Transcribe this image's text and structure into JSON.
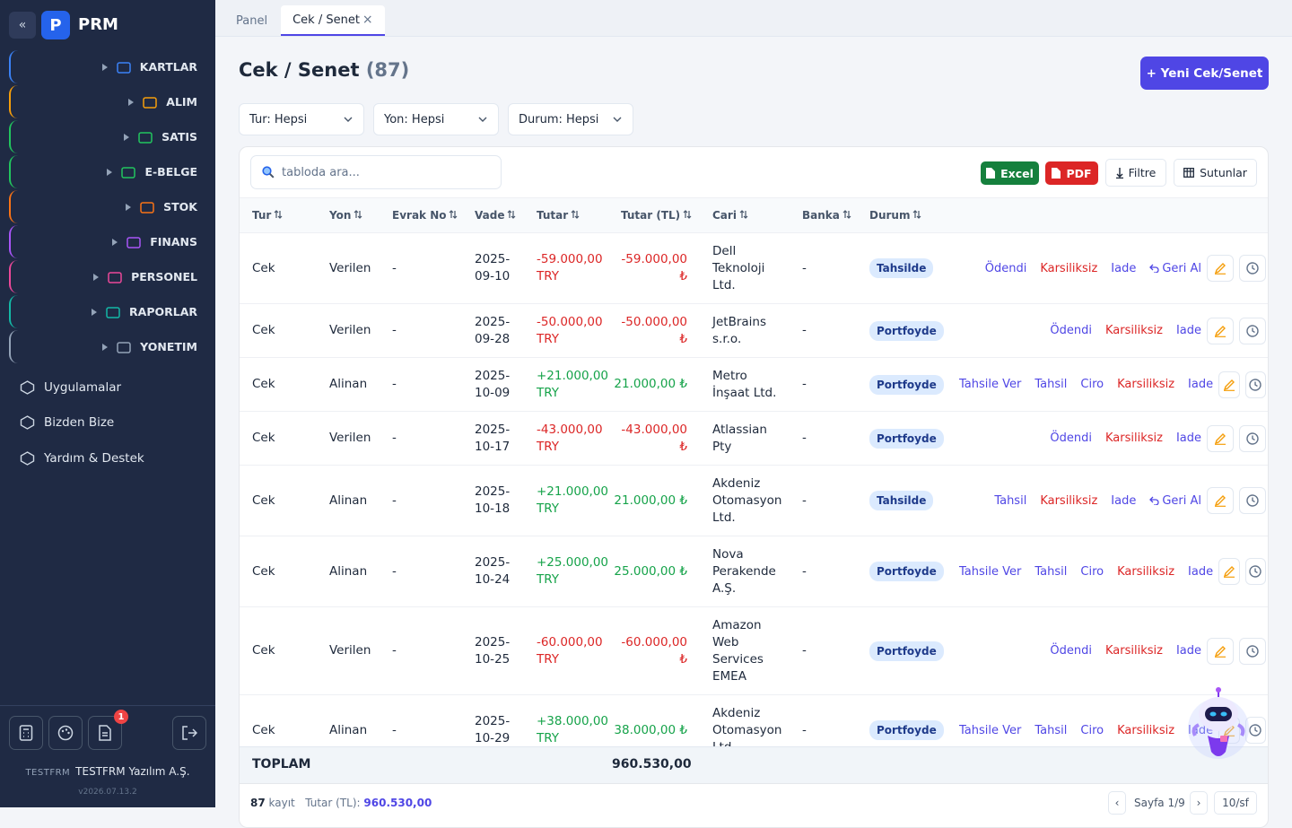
{
  "sidebar": {
    "collapse": "«",
    "logo": "P",
    "brand": "PRM",
    "menu": [
      {
        "label": "KARTLAR",
        "color": "#3b82f6"
      },
      {
        "label": "ALIM",
        "color": "#f59e0b"
      },
      {
        "label": "SATIS",
        "color": "#22c55e"
      },
      {
        "label": "E-BELGE",
        "color": "#22c55e"
      },
      {
        "label": "STOK",
        "color": "#f97316"
      },
      {
        "label": "FINANS",
        "color": "#a855f7"
      },
      {
        "label": "PERSONEL",
        "color": "#ec4899"
      },
      {
        "label": "RAPORLAR",
        "color": "#14b8a6"
      },
      {
        "label": "YONETIM",
        "color": "#94a3b8"
      }
    ],
    "links": [
      "Uygulamalar",
      "Bizden Bize",
      "Yardım & Destek"
    ],
    "badge": "1",
    "company_code": "TESTFRM",
    "company": "TESTFRM Yazılım A.Ş.",
    "version": "v2026.07.13.2"
  },
  "tabs": [
    {
      "label": "Panel",
      "active": false
    },
    {
      "label": "Cek / Senet",
      "active": true,
      "close": "×"
    }
  ],
  "header": {
    "title": "Cek / Senet",
    "count": "(87)",
    "new_button": "+ Yeni Cek/Senet"
  },
  "filters": [
    "Tur: Hepsi",
    "Yon: Hepsi",
    "Durum: Hepsi"
  ],
  "toolbar": {
    "search_placeholder": "tabloda ara...",
    "excel": "Excel",
    "pdf": "PDF",
    "filter": "Filtre",
    "columns": "Sutunlar"
  },
  "table": {
    "columns": [
      "Tur",
      "Yon",
      "Evrak No",
      "Vade",
      "Tutar",
      "Tutar (TL)",
      "Cari",
      "Banka",
      "Durum"
    ],
    "rows": [
      {
        "tur": "Cek",
        "yon": "Verilen",
        "evrak": "-",
        "vade": "2025-09-10",
        "tutar": "-59.000,00 TRY",
        "tutar_tl": "-59.000,00 ₺",
        "cari": "Dell Teknoloji Ltd.",
        "banka": "-",
        "durum": "Tahsilde",
        "actions": [
          {
            "label": "Ödendi",
            "tone": "primary"
          },
          {
            "label": "Karsiliksiz",
            "tone": "danger"
          },
          {
            "label": "Iade",
            "tone": "primary"
          },
          {
            "label": "Geri Al",
            "tone": "primary",
            "icon": "undo"
          }
        ]
      },
      {
        "tur": "Cek",
        "yon": "Verilen",
        "evrak": "-",
        "vade": "2025-09-28",
        "tutar": "-50.000,00 TRY",
        "tutar_tl": "-50.000,00 ₺",
        "cari": "JetBrains s.r.o.",
        "banka": "-",
        "durum": "Portfoyde",
        "actions": [
          {
            "label": "Ödendi",
            "tone": "primary"
          },
          {
            "label": "Karsiliksiz",
            "tone": "danger"
          },
          {
            "label": "Iade",
            "tone": "primary"
          }
        ]
      },
      {
        "tur": "Cek",
        "yon": "Alinan",
        "evrak": "-",
        "vade": "2025-10-09",
        "tutar": "+21.000,00 TRY",
        "tutar_tl": "21.000,00 ₺",
        "cari": "Metro İnşaat Ltd.",
        "banka": "-",
        "durum": "Portfoyde",
        "actions": [
          {
            "label": "Tahsile Ver",
            "tone": "primary"
          },
          {
            "label": "Tahsil",
            "tone": "primary"
          },
          {
            "label": "Ciro",
            "tone": "primary"
          },
          {
            "label": "Karsiliksiz",
            "tone": "danger"
          },
          {
            "label": "Iade",
            "tone": "primary"
          }
        ]
      },
      {
        "tur": "Cek",
        "yon": "Verilen",
        "evrak": "-",
        "vade": "2025-10-17",
        "tutar": "-43.000,00 TRY",
        "tutar_tl": "-43.000,00 ₺",
        "cari": "Atlassian Pty",
        "banka": "-",
        "durum": "Portfoyde",
        "actions": [
          {
            "label": "Ödendi",
            "tone": "primary"
          },
          {
            "label": "Karsiliksiz",
            "tone": "danger"
          },
          {
            "label": "Iade",
            "tone": "primary"
          }
        ]
      },
      {
        "tur": "Cek",
        "yon": "Alinan",
        "evrak": "-",
        "vade": "2025-10-18",
        "tutar": "+21.000,00 TRY",
        "tutar_tl": "21.000,00 ₺",
        "cari": "Akdeniz Otomasyon Ltd.",
        "banka": "-",
        "durum": "Tahsilde",
        "actions": [
          {
            "label": "Tahsil",
            "tone": "primary"
          },
          {
            "label": "Karsiliksiz",
            "tone": "danger"
          },
          {
            "label": "Iade",
            "tone": "primary"
          },
          {
            "label": "Geri Al",
            "tone": "primary",
            "icon": "undo"
          }
        ]
      },
      {
        "tur": "Cek",
        "yon": "Alinan",
        "evrak": "-",
        "vade": "2025-10-24",
        "tutar": "+25.000,00 TRY",
        "tutar_tl": "25.000,00 ₺",
        "cari": "Nova Perakende A.Ş.",
        "banka": "-",
        "durum": "Portfoyde",
        "actions": [
          {
            "label": "Tahsile Ver",
            "tone": "primary"
          },
          {
            "label": "Tahsil",
            "tone": "primary"
          },
          {
            "label": "Ciro",
            "tone": "primary"
          },
          {
            "label": "Karsiliksiz",
            "tone": "danger"
          },
          {
            "label": "Iade",
            "tone": "primary"
          }
        ]
      },
      {
        "tur": "Cek",
        "yon": "Verilen",
        "evrak": "-",
        "vade": "2025-10-25",
        "tutar": "-60.000,00 TRY",
        "tutar_tl": "-60.000,00 ₺",
        "cari": "Amazon Web Services EMEA",
        "banka": "-",
        "durum": "Portfoyde",
        "actions": [
          {
            "label": "Ödendi",
            "tone": "primary"
          },
          {
            "label": "Karsiliksiz",
            "tone": "danger"
          },
          {
            "label": "Iade",
            "tone": "primary"
          }
        ]
      },
      {
        "tur": "Cek",
        "yon": "Alinan",
        "evrak": "-",
        "vade": "2025-10-29",
        "tutar": "+38.000,00 TRY",
        "tutar_tl": "38.000,00 ₺",
        "cari": "Akdeniz Otomasyon Ltd.",
        "banka": "-",
        "durum": "Portfoyde",
        "actions": [
          {
            "label": "Tahsile Ver",
            "tone": "primary"
          },
          {
            "label": "Tahsil",
            "tone": "primary"
          },
          {
            "label": "Ciro",
            "tone": "primary"
          },
          {
            "label": "Karsiliksiz",
            "tone": "danger"
          },
          {
            "label": "Iade",
            "tone": "primary"
          }
        ]
      }
    ],
    "total_label": "TOPLAM",
    "total": "960.530,00"
  },
  "footer": {
    "count": "87",
    "count_label": "kayıt",
    "sum_label": "Tutar (TL):",
    "sum": "960.530,00",
    "prev": "‹",
    "page": "Sayfa 1/9",
    "next": "›",
    "page_size": "10/sf"
  }
}
